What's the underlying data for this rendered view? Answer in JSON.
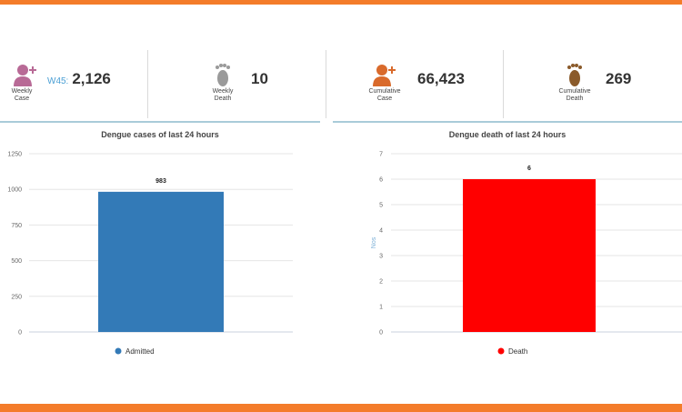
{
  "stats": [
    {
      "icon": "person-add-icon",
      "color": "#b86a96",
      "label_line1": "Weekly",
      "label_line2": "Case",
      "prefix": "W45:",
      "value": "2,126"
    },
    {
      "icon": "footprint-icon",
      "color": "#9a9a9a",
      "label_line1": "Weekly",
      "label_line2": "Death",
      "prefix": "",
      "value": "10"
    },
    {
      "icon": "person-add-icon",
      "color": "#d96a2b",
      "label_line1": "Cumulative",
      "label_line2": "Case",
      "prefix": "",
      "value": "66,423"
    },
    {
      "icon": "footprint-icon",
      "color": "#8a5a2a",
      "label_line1": "Cumulative",
      "label_line2": "Death",
      "prefix": "",
      "value": "269"
    }
  ],
  "colors": {
    "accent": "#f47c2a",
    "admitted": "#337ab7",
    "death": "#ff0000"
  },
  "chart_data": [
    {
      "type": "bar",
      "title": "Dengue cases of last 24 hours",
      "categories": [
        "Admitted"
      ],
      "series": [
        {
          "name": "Admitted",
          "values": [
            983
          ]
        }
      ],
      "data_labels": [
        "983"
      ],
      "ylim": [
        0,
        1250
      ],
      "yticks": [
        "0",
        "250",
        "500",
        "750",
        "1000",
        "1250"
      ],
      "ylabel": "",
      "grid": true,
      "legend": "bottom",
      "color": "#337ab7"
    },
    {
      "type": "bar",
      "title": "Dengue death of last 24 hours",
      "categories": [
        "Death"
      ],
      "series": [
        {
          "name": "Death",
          "values": [
            6
          ]
        }
      ],
      "data_labels": [
        "6"
      ],
      "ylim": [
        0,
        7
      ],
      "yticks": [
        "0",
        "1",
        "2",
        "3",
        "4",
        "5",
        "6",
        "7"
      ],
      "ylabel": "Nos",
      "grid": true,
      "legend": "bottom",
      "color": "#ff0000"
    }
  ]
}
